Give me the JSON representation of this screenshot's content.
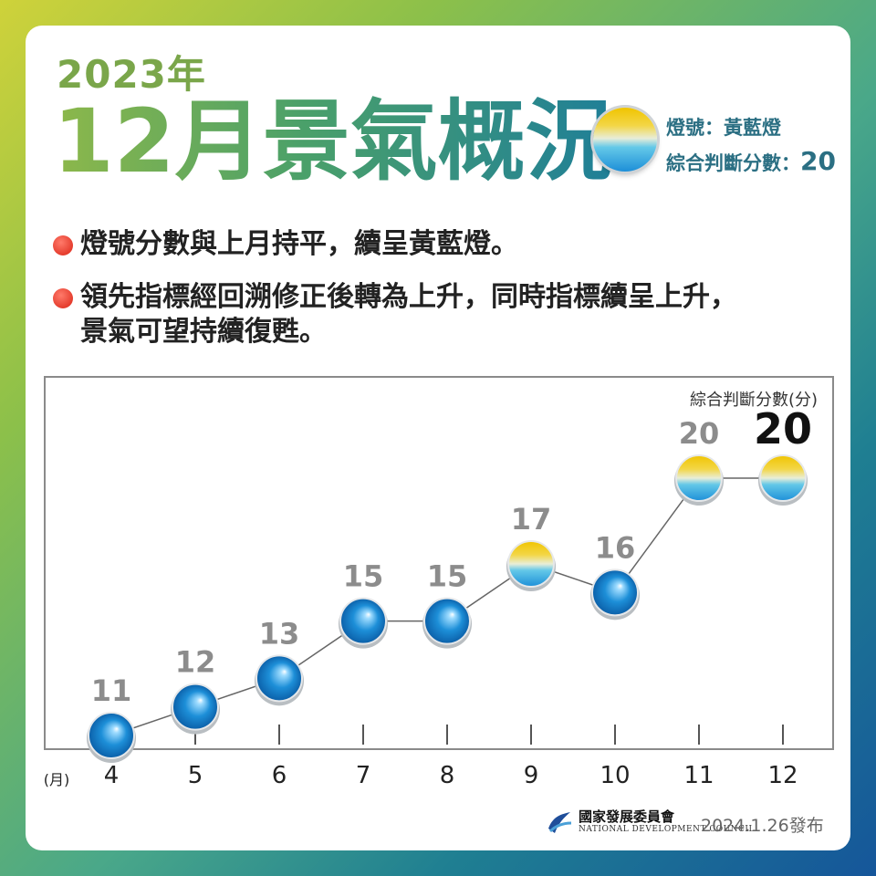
{
  "header": {
    "year": "2023年",
    "title": "12月景氣概況",
    "signal_label": "燈號：黃藍燈",
    "score_label": "綜合判斷分數：",
    "score_value": "20"
  },
  "bullets": [
    "燈號分數與上月持平，續呈黃藍燈。",
    "領先指標經回溯修正後轉為上升，同時指標續呈上升，",
    "景氣可望持續復甦。"
  ],
  "chart_data": {
    "type": "line",
    "title": "",
    "ylabel": "綜合判斷分數(分)",
    "xlabel": "(月)",
    "categories": [
      "4",
      "5",
      "6",
      "7",
      "8",
      "9",
      "10",
      "11",
      "12"
    ],
    "values": [
      11,
      12,
      13,
      15,
      15,
      17,
      16,
      20,
      20
    ],
    "signals": [
      "blue",
      "blue",
      "blue",
      "blue",
      "blue",
      "yellow-blue",
      "blue",
      "yellow-blue",
      "yellow-blue"
    ],
    "ylim": [
      8,
      23
    ],
    "grid": false
  },
  "colors": {
    "blue": "#1d8fd8",
    "yellow": "#f0c400",
    "label_gray": "#8c8c8c",
    "accent": "#2b6f83"
  },
  "footer": {
    "org": "國家發展委員會",
    "org_en": "NATIONAL DEVELOPMENT COUNCIL",
    "date": "2024.1.26發布"
  }
}
